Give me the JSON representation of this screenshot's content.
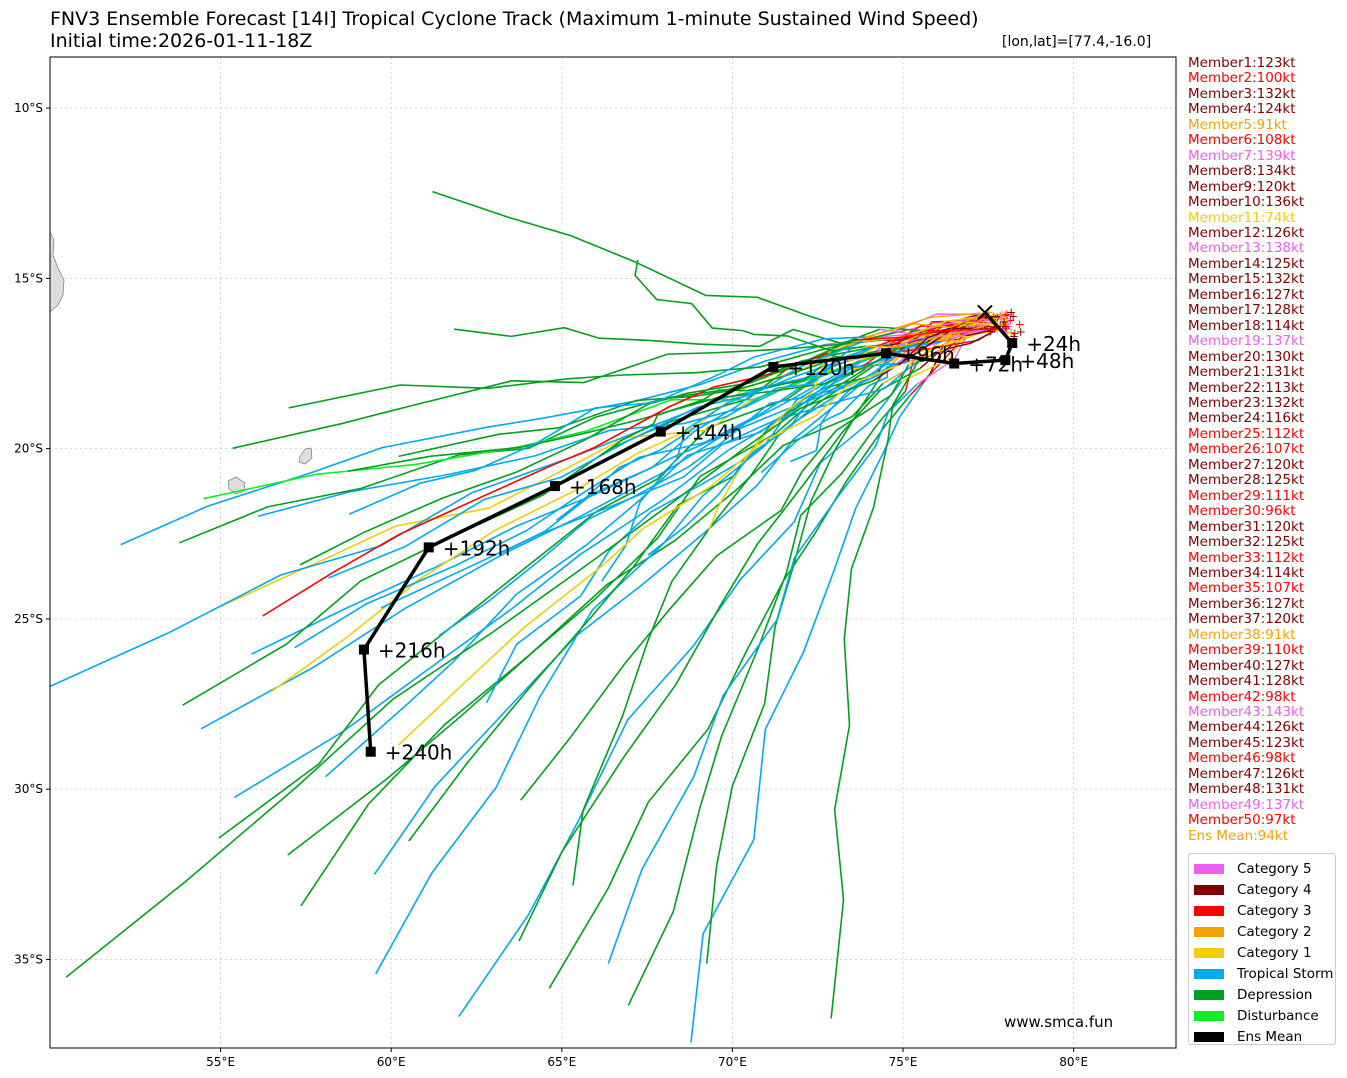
{
  "title_line1": "FNV3 Ensemble Forecast [14I] Tropical Cyclone Track (Maximum 1-minute Sustained Wind Speed)",
  "title_line2": "Initial time:2026-01-11-18Z",
  "coord_label": "[lon,lat]=[77.4,-16.0]",
  "website": "www.smca.fun",
  "lon_ticks": [
    {
      "lon": 55,
      "label": "55°E"
    },
    {
      "lon": 60,
      "label": "60°E"
    },
    {
      "lon": 65,
      "label": "65°E"
    },
    {
      "lon": 70,
      "label": "70°E"
    },
    {
      "lon": 75,
      "label": "75°E"
    },
    {
      "lon": 80,
      "label": "80°E"
    }
  ],
  "lat_ticks": [
    {
      "lat": -10,
      "label": "10°S"
    },
    {
      "lat": -15,
      "label": "15°S"
    },
    {
      "lat": -20,
      "label": "20°S"
    },
    {
      "lat": -25,
      "label": "25°S"
    },
    {
      "lat": -30,
      "label": "30°S"
    },
    {
      "lat": -35,
      "label": "35°S"
    }
  ],
  "colors": {
    "cat5": "#ee5ff0",
    "cat4": "#800000",
    "cat3": "#ff0000",
    "cat2": "#f5a300",
    "cat1": "#f0d000",
    "ts": "#00aaee",
    "td": "#00a01e",
    "dist": "#11ee22",
    "mean": "#000000"
  },
  "members": [
    {
      "label": "Member1:123kt",
      "cat": "cat4"
    },
    {
      "label": "Member2:100kt",
      "cat": "cat3"
    },
    {
      "label": "Member3:132kt",
      "cat": "cat4"
    },
    {
      "label": "Member4:124kt",
      "cat": "cat4"
    },
    {
      "label": "Member5:91kt",
      "cat": "cat2"
    },
    {
      "label": "Member6:108kt",
      "cat": "cat3"
    },
    {
      "label": "Member7:139kt",
      "cat": "cat5"
    },
    {
      "label": "Member8:134kt",
      "cat": "cat4"
    },
    {
      "label": "Member9:120kt",
      "cat": "cat4"
    },
    {
      "label": "Member10:136kt",
      "cat": "cat4"
    },
    {
      "label": "Member11:74kt",
      "cat": "cat1"
    },
    {
      "label": "Member12:126kt",
      "cat": "cat4"
    },
    {
      "label": "Member13:138kt",
      "cat": "cat5"
    },
    {
      "label": "Member14:125kt",
      "cat": "cat4"
    },
    {
      "label": "Member15:132kt",
      "cat": "cat4"
    },
    {
      "label": "Member16:127kt",
      "cat": "cat4"
    },
    {
      "label": "Member17:128kt",
      "cat": "cat4"
    },
    {
      "label": "Member18:114kt",
      "cat": "cat4"
    },
    {
      "label": "Member19:137kt",
      "cat": "cat5"
    },
    {
      "label": "Member20:130kt",
      "cat": "cat4"
    },
    {
      "label": "Member21:131kt",
      "cat": "cat4"
    },
    {
      "label": "Member22:113kt",
      "cat": "cat4"
    },
    {
      "label": "Member23:132kt",
      "cat": "cat4"
    },
    {
      "label": "Member24:116kt",
      "cat": "cat4"
    },
    {
      "label": "Member25:112kt",
      "cat": "cat3"
    },
    {
      "label": "Member26:107kt",
      "cat": "cat3"
    },
    {
      "label": "Member27:120kt",
      "cat": "cat4"
    },
    {
      "label": "Member28:125kt",
      "cat": "cat4"
    },
    {
      "label": "Member29:111kt",
      "cat": "cat3"
    },
    {
      "label": "Member30:96kt",
      "cat": "cat3"
    },
    {
      "label": "Member31:120kt",
      "cat": "cat4"
    },
    {
      "label": "Member32:125kt",
      "cat": "cat4"
    },
    {
      "label": "Member33:112kt",
      "cat": "cat3"
    },
    {
      "label": "Member34:114kt",
      "cat": "cat4"
    },
    {
      "label": "Member35:107kt",
      "cat": "cat3"
    },
    {
      "label": "Member36:127kt",
      "cat": "cat4"
    },
    {
      "label": "Member37:120kt",
      "cat": "cat4"
    },
    {
      "label": "Member38:91kt",
      "cat": "cat2"
    },
    {
      "label": "Member39:110kt",
      "cat": "cat3"
    },
    {
      "label": "Member40:127kt",
      "cat": "cat4"
    },
    {
      "label": "Member41:128kt",
      "cat": "cat4"
    },
    {
      "label": "Member42:98kt",
      "cat": "cat3"
    },
    {
      "label": "Member43:143kt",
      "cat": "cat5"
    },
    {
      "label": "Member44:126kt",
      "cat": "cat4"
    },
    {
      "label": "Member45:123kt",
      "cat": "cat4"
    },
    {
      "label": "Member46:98kt",
      "cat": "cat3"
    },
    {
      "label": "Member47:126kt",
      "cat": "cat4"
    },
    {
      "label": "Member48:131kt",
      "cat": "cat4"
    },
    {
      "label": "Member49:137kt",
      "cat": "cat5"
    },
    {
      "label": "Member50:97kt",
      "cat": "cat3"
    },
    {
      "label": "Ens Mean:94kt",
      "cat": "cat2"
    }
  ],
  "legend": [
    {
      "label": "Category 5",
      "cat": "cat5"
    },
    {
      "label": "Category 4",
      "cat": "cat4"
    },
    {
      "label": "Category 3",
      "cat": "cat3"
    },
    {
      "label": "Category 2",
      "cat": "cat2"
    },
    {
      "label": "Category 1",
      "cat": "cat1"
    },
    {
      "label": "Tropical Storm",
      "cat": "ts"
    },
    {
      "label": "Depression",
      "cat": "td"
    },
    {
      "label": "Disturbance",
      "cat": "dist"
    },
    {
      "label": "Ens Mean",
      "cat": "mean"
    }
  ],
  "initial_position": {
    "lon": 77.4,
    "lat": -16.0
  },
  "ensemble_mean": [
    {
      "lon": 77.4,
      "lat": -16.0
    },
    {
      "lon": 78.2,
      "lat": -16.9,
      "label": "+24h"
    },
    {
      "lon": 78.0,
      "lat": -17.4,
      "label": "+48h"
    },
    {
      "lon": 76.5,
      "lat": -17.5,
      "label": "+72h"
    },
    {
      "lon": 74.5,
      "lat": -17.2,
      "label": "+96h"
    },
    {
      "lon": 71.2,
      "lat": -17.6,
      "label": "+120h"
    },
    {
      "lon": 67.9,
      "lat": -19.5,
      "label": "+144h"
    },
    {
      "lon": 64.8,
      "lat": -21.1,
      "label": "+168h"
    },
    {
      "lon": 61.1,
      "lat": -22.9,
      "label": "+192h"
    },
    {
      "lon": 59.2,
      "lat": -25.9,
      "label": "+216h"
    },
    {
      "lon": 59.4,
      "lat": -28.9,
      "label": "+240h"
    }
  ]
}
